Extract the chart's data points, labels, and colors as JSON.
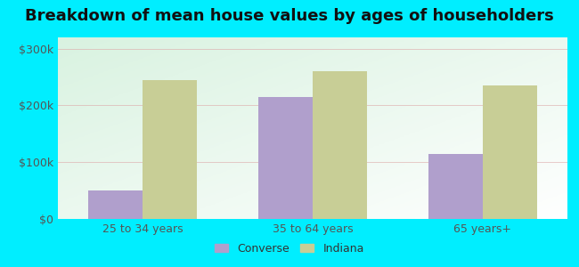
{
  "title": "Breakdown of mean house values by ages of householders",
  "categories": [
    "25 to 34 years",
    "35 to 64 years",
    "65 years+"
  ],
  "converse_values": [
    50000,
    215000,
    115000
  ],
  "indiana_values": [
    245000,
    260000,
    235000
  ],
  "converse_color": "#b09fcc",
  "indiana_color": "#c8ce96",
  "background_outer": "#00eeff",
  "yticks": [
    0,
    100000,
    200000,
    300000
  ],
  "ytick_labels": [
    "$0",
    "$100k",
    "$200k",
    "$300k"
  ],
  "ylim": [
    0,
    320000
  ],
  "legend_labels": [
    "Converse",
    "Indiana"
  ],
  "bar_width": 0.32,
  "title_fontsize": 13,
  "tick_fontsize": 9,
  "legend_fontsize": 9
}
